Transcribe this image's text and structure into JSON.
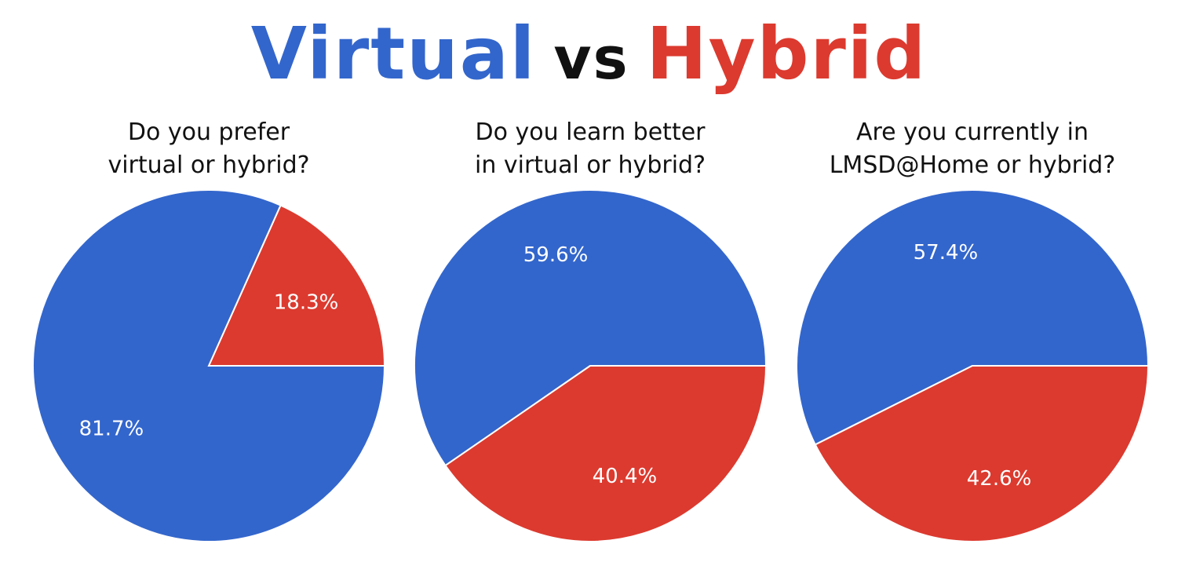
{
  "headline": {
    "word1": "Virtual",
    "word2": "vs",
    "word3": "Hybrid",
    "color_virtual": "#3366cc",
    "color_vs": "#111111",
    "color_hybrid": "#dc3a2f"
  },
  "chart_data": [
    {
      "type": "pie",
      "title_lines": [
        "Do you prefer",
        "virtual or hybrid?"
      ],
      "slices": [
        {
          "label": "Hybrid",
          "value": 18.3,
          "display": "18.3%",
          "color": "#dc3a2f"
        },
        {
          "label": "Virtual",
          "value": 81.7,
          "display": "81.7%",
          "color": "#3366cc"
        }
      ],
      "start_angle_deg": 0,
      "direction": "counterclockwise"
    },
    {
      "type": "pie",
      "title_lines": [
        "Do you learn better",
        "in virtual or hybrid?"
      ],
      "slices": [
        {
          "label": "Virtual",
          "value": 59.6,
          "display": "59.6%",
          "color": "#3366cc"
        },
        {
          "label": "Hybrid",
          "value": 40.4,
          "display": "40.4%",
          "color": "#dc3a2f"
        }
      ],
      "start_angle_deg": 0,
      "direction": "counterclockwise"
    },
    {
      "type": "pie",
      "title_lines": [
        "Are you currently in",
        "LMSD@Home or hybrid?"
      ],
      "slices": [
        {
          "label": "Virtual",
          "value": 57.4,
          "display": "57.4%",
          "color": "#3366cc"
        },
        {
          "label": "Hybrid",
          "value": 42.6,
          "display": "42.6%",
          "color": "#dc3a2f"
        }
      ],
      "start_angle_deg": 0,
      "direction": "counterclockwise"
    }
  ]
}
